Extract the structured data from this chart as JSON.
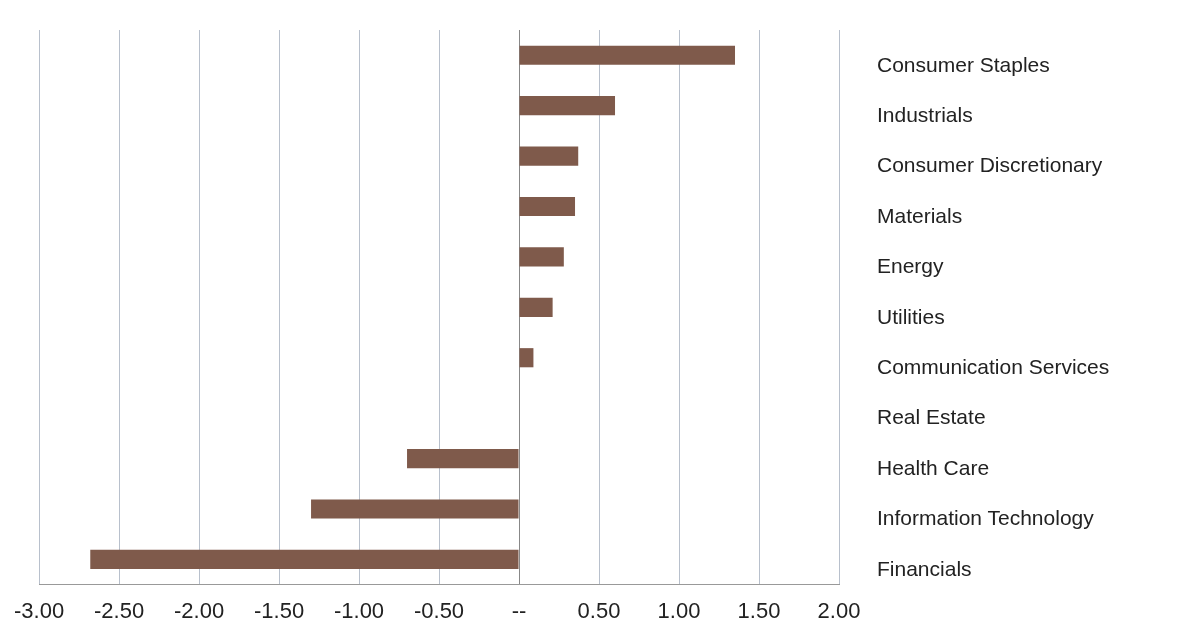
{
  "chart_data": {
    "type": "bar",
    "orientation": "horizontal",
    "categories": [
      "Consumer Staples",
      "Industrials",
      "Consumer Discretionary",
      "Materials",
      "Energy",
      "Utilities",
      "Communication Services",
      "Real Estate",
      "Health Care",
      "Information Technology",
      "Financials"
    ],
    "values": [
      1.35,
      0.6,
      0.37,
      0.35,
      0.28,
      0.21,
      0.09,
      0,
      -0.7,
      -1.3,
      -2.68
    ],
    "color": "#7f5a4b",
    "xlim": [
      -3,
      2
    ],
    "xticks": [
      {
        "value": -3,
        "label": "-3.00"
      },
      {
        "value": -2.5,
        "label": "-2.50"
      },
      {
        "value": -2,
        "label": "-2.00"
      },
      {
        "value": -1.5,
        "label": "-1.50"
      },
      {
        "value": -1,
        "label": "-1.00"
      },
      {
        "value": -0.5,
        "label": "-0.50"
      },
      {
        "value": 0,
        "label": "--"
      },
      {
        "value": 0.5,
        "label": "0.50"
      },
      {
        "value": 1,
        "label": "1.00"
      },
      {
        "value": 1.5,
        "label": "1.50"
      },
      {
        "value": 2,
        "label": "2.00"
      }
    ],
    "grid": "x",
    "legend": false
  }
}
